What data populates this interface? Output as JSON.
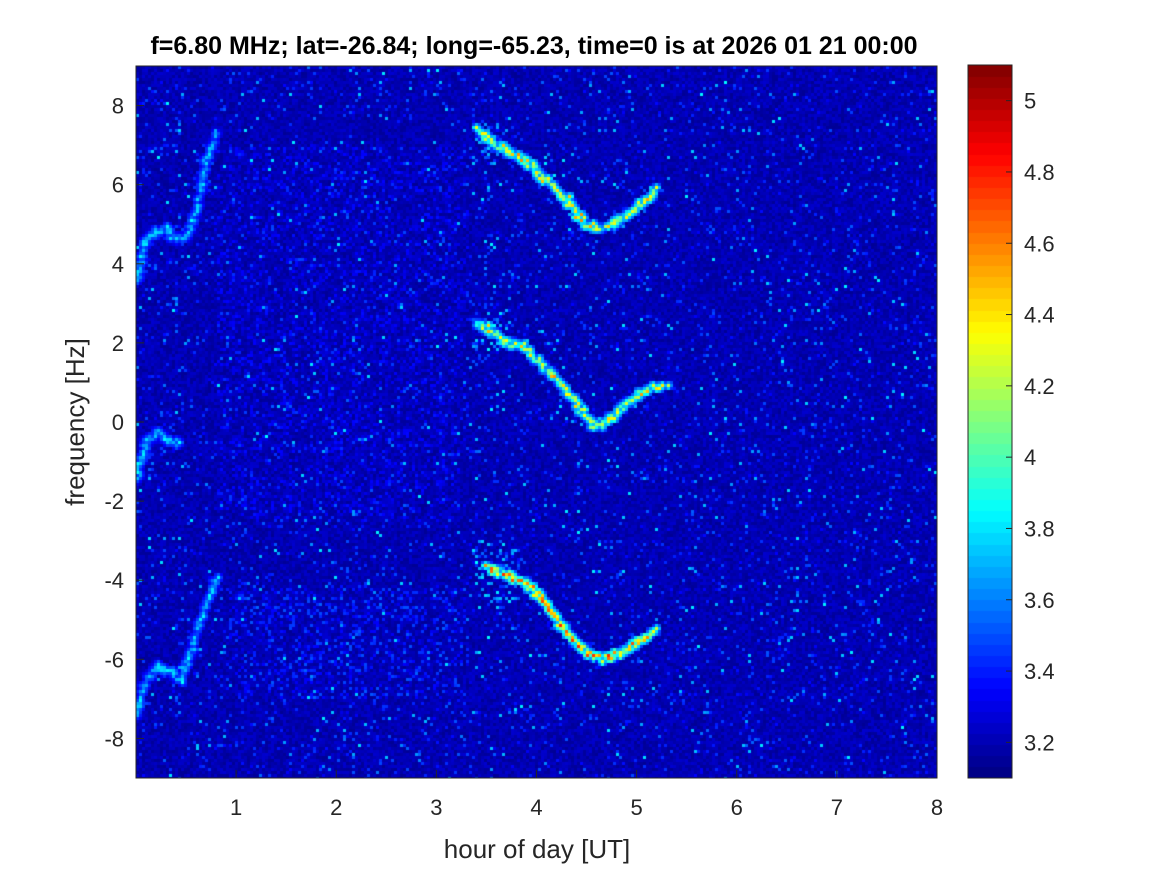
{
  "chart_data": {
    "type": "heatmap",
    "title": "f=6.80 MHz;  lat=-26.84; long=-65.23, time=0 is at 2026 01 21 00:00",
    "xlabel": "hour of day [UT]",
    "ylabel": "frequency [Hz]",
    "xlim": [
      0,
      8
    ],
    "ylim": [
      -9,
      9
    ],
    "x_ticks": [
      1,
      2,
      3,
      4,
      5,
      6,
      7,
      8
    ],
    "y_ticks": [
      -8,
      -6,
      -4,
      -2,
      0,
      2,
      4,
      6,
      8
    ],
    "x_tick_labels": [
      "1",
      "2",
      "3",
      "4",
      "5",
      "6",
      "7",
      "8"
    ],
    "y_tick_labels": [
      "-8",
      "-6",
      "-4",
      "-2",
      "0",
      "2",
      "4",
      "6",
      "8"
    ],
    "colorbar": {
      "colormap": "jet",
      "clim": [
        3.1,
        5.1
      ],
      "ticks": [
        3.2,
        3.4,
        3.6,
        3.8,
        4,
        4.2,
        4.4,
        4.6,
        4.8,
        5
      ],
      "tick_labels": [
        "3.2",
        "3.4",
        "3.6",
        "3.8",
        "4",
        "4.2",
        "4.4",
        "4.6",
        "4.8",
        "5"
      ]
    },
    "background_level": 3.2,
    "grid": false,
    "features": [
      {
        "kind": "trace",
        "points": [
          [
            0,
            3.6
          ],
          [
            0.1,
            4.6
          ],
          [
            0.2,
            4.8
          ],
          [
            0.3,
            4.9
          ],
          [
            0.4,
            4.6
          ],
          [
            0.5,
            4.7
          ],
          [
            0.6,
            5.3
          ],
          [
            0.7,
            6.6
          ],
          [
            0.8,
            7.3
          ]
        ],
        "peak": 3.9
      },
      {
        "kind": "trace",
        "points": [
          [
            0,
            -1.5
          ],
          [
            0.1,
            -0.5
          ],
          [
            0.2,
            -0.3
          ],
          [
            0.3,
            -0.4
          ],
          [
            0.45,
            -0.6
          ]
        ],
        "peak": 3.9
      },
      {
        "kind": "trace",
        "points": [
          [
            0,
            -7.4
          ],
          [
            0.1,
            -6.5
          ],
          [
            0.2,
            -6.2
          ],
          [
            0.3,
            -6.3
          ],
          [
            0.45,
            -6.5
          ],
          [
            0.55,
            -5.8
          ],
          [
            0.65,
            -5.0
          ],
          [
            0.75,
            -4.3
          ],
          [
            0.8,
            -4.0
          ]
        ],
        "peak": 3.9
      },
      {
        "kind": "trace",
        "points": [
          [
            3.4,
            7.4
          ],
          [
            3.6,
            7.0
          ],
          [
            3.75,
            6.8
          ],
          [
            3.9,
            6.6
          ],
          [
            4.05,
            6.2
          ],
          [
            4.2,
            5.9
          ],
          [
            4.3,
            5.6
          ],
          [
            4.4,
            5.3
          ],
          [
            4.5,
            5.0
          ],
          [
            4.7,
            4.9
          ],
          [
            5.0,
            5.4
          ],
          [
            5.2,
            5.9
          ]
        ],
        "peak": 4.7
      },
      {
        "kind": "trace",
        "points": [
          [
            3.4,
            2.5
          ],
          [
            3.55,
            2.3
          ],
          [
            3.7,
            2.0
          ],
          [
            3.85,
            1.9
          ],
          [
            4.0,
            1.6
          ],
          [
            4.15,
            1.2
          ],
          [
            4.3,
            0.8
          ],
          [
            4.45,
            0.3
          ],
          [
            4.55,
            -0.05
          ],
          [
            4.65,
            -0.1
          ],
          [
            4.9,
            0.5
          ],
          [
            5.1,
            0.8
          ],
          [
            5.3,
            0.9
          ]
        ],
        "peak": 4.6
      },
      {
        "kind": "trace",
        "points": [
          [
            3.5,
            -3.6
          ],
          [
            3.6,
            -3.8
          ],
          [
            3.75,
            -3.9
          ],
          [
            3.9,
            -4.1
          ],
          [
            4.0,
            -4.3
          ],
          [
            4.1,
            -4.6
          ],
          [
            4.2,
            -5.0
          ],
          [
            4.3,
            -5.3
          ],
          [
            4.4,
            -5.6
          ],
          [
            4.55,
            -5.9
          ],
          [
            4.7,
            -6.0
          ],
          [
            5.0,
            -5.6
          ],
          [
            5.2,
            -5.3
          ]
        ],
        "peak": 4.9
      },
      {
        "kind": "patch",
        "x": [
          3.4,
          3.8
        ],
        "y": [
          -4.6,
          -3.0
        ],
        "peak": 3.9
      },
      {
        "kind": "patch",
        "x": [
          3.35,
          3.75
        ],
        "y": [
          1.8,
          2.8
        ],
        "peak": 3.9
      },
      {
        "kind": "patch",
        "x": [
          3.35,
          3.7
        ],
        "y": [
          6.5,
          7.6
        ],
        "peak": 3.8
      },
      {
        "kind": "patch",
        "x": [
          0.9,
          3.3
        ],
        "y": [
          -7.0,
          -4.2
        ],
        "peak": 3.55
      },
      {
        "kind": "patch",
        "x": [
          0.8,
          3.3
        ],
        "y": [
          -2.5,
          7.0
        ],
        "peak": 3.4
      }
    ]
  }
}
